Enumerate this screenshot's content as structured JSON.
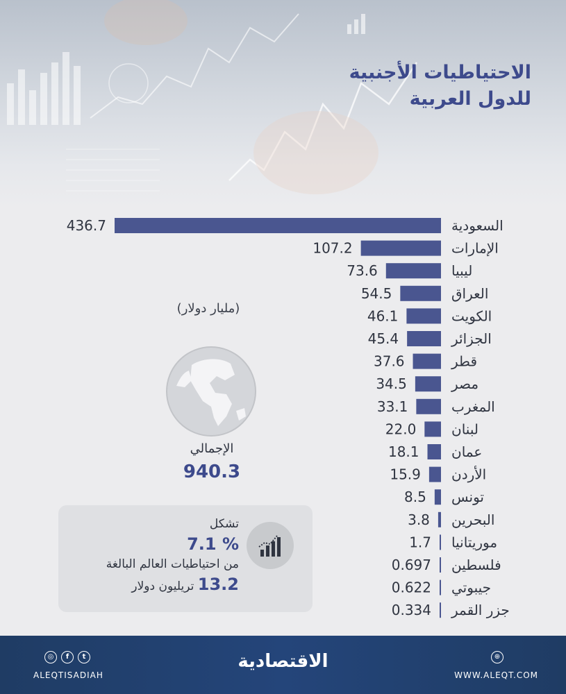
{
  "header": {
    "title_line1": "الاحتياطيات الأجنبية",
    "title_line2": "للدول العربية"
  },
  "chart_data": {
    "type": "bar",
    "orientation": "horizontal",
    "title": "الاحتياطيات الأجنبية للدول العربية",
    "unit": "(مليار دولار)",
    "categories": [
      "السعودية",
      "الإمارات",
      "ليبيا",
      "العراق",
      "الكويت",
      "الجزائر",
      "قطر",
      "مصر",
      "المغرب",
      "لبنان",
      "عمان",
      "الأردن",
      "تونس",
      "البحرين",
      "موريتانيا",
      "فلسطين",
      "جيبوتي",
      "جزر القمر"
    ],
    "values": [
      436.7,
      107.2,
      73.6,
      54.5,
      46.1,
      45.4,
      37.6,
      34.5,
      33.1,
      22.0,
      18.1,
      15.9,
      8.5,
      3.8,
      1.7,
      0.697,
      0.622,
      0.334
    ],
    "value_labels": [
      "436.7",
      "107.2",
      "73.6",
      "54.5",
      "46.1",
      "45.4",
      "37.6",
      "34.5",
      "33.1",
      "22.0",
      "18.1",
      "15.9",
      "8.5",
      "3.8",
      "1.7",
      "0.697",
      "0.622",
      "0.334"
    ],
    "xlim": [
      0,
      436.7
    ],
    "bar_color": "#4a5690",
    "legend": "none",
    "grid": false
  },
  "summary": {
    "total_label": "الإجمالي",
    "total_value": "940.3"
  },
  "info": {
    "line1": "تشكل",
    "percent": "% 7.1",
    "line3": "من احتياطيات العالم البالغة",
    "world_value": "13.2",
    "world_unit": "تريليون دولار"
  },
  "footer": {
    "brand": "الاقتصادية",
    "handle": "ALEQTISADIAH",
    "website": "WWW.ALEQT.COM"
  },
  "colors": {
    "accent": "#3d4a8c",
    "bar": "#4a5690",
    "footer": "#24457a",
    "background": "#ececee"
  },
  "icons": [
    "chart-growth-icon",
    "globe-icon",
    "instagram-icon",
    "facebook-icon",
    "twitter-icon",
    "dribbble-icon"
  ]
}
